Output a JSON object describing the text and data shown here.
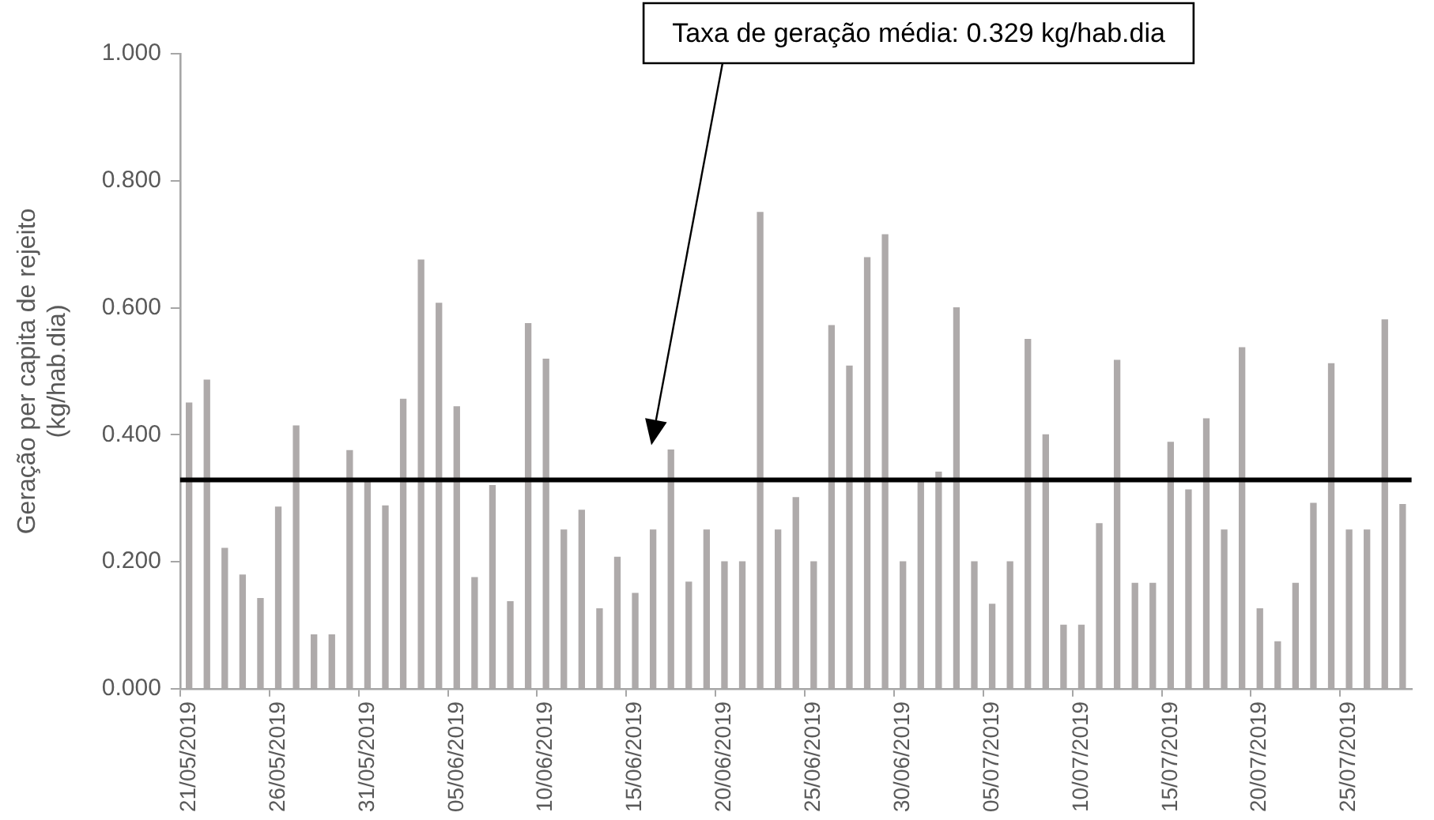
{
  "chart_data": {
    "type": "bar",
    "ylabel": "Geração per capita de rejeito\n(kg/hab.dia)",
    "categories": [
      "21/05/2019",
      null,
      null,
      null,
      null,
      "26/05/2019",
      null,
      null,
      null,
      null,
      "31/05/2019",
      null,
      null,
      null,
      null,
      "05/06/2019",
      null,
      null,
      null,
      null,
      "10/06/2019",
      null,
      null,
      null,
      null,
      "15/06/2019",
      null,
      null,
      null,
      null,
      "20/06/2019",
      null,
      null,
      null,
      null,
      "25/06/2019",
      null,
      null,
      null,
      null,
      "30/06/2019",
      null,
      null,
      null,
      null,
      "05/07/2019",
      null,
      null,
      null,
      null,
      "10/07/2019",
      null,
      null,
      null,
      null,
      "15/07/2019",
      null,
      null,
      null,
      null,
      "20/07/2019",
      null,
      null,
      null,
      null,
      "25/07/2019",
      null,
      null,
      null
    ],
    "values": [
      0.45,
      0.486,
      0.221,
      0.179,
      0.142,
      0.286,
      0.414,
      0.085,
      0.085,
      0.375,
      0.327,
      0.288,
      0.456,
      0.675,
      0.607,
      0.444,
      0.175,
      0.32,
      0.137,
      0.575,
      0.519,
      0.25,
      0.281,
      0.126,
      0.207,
      0.15,
      0.25,
      0.376,
      0.168,
      0.25,
      0.2,
      0.2,
      0.75,
      0.25,
      0.301,
      0.2,
      0.572,
      0.508,
      0.679,
      0.715,
      0.2,
      0.327,
      0.341,
      0.6,
      0.2,
      0.133,
      0.2,
      0.55,
      0.4,
      0.1,
      0.1,
      0.26,
      0.517,
      0.166,
      0.166,
      0.388,
      0.313,
      0.425,
      0.25,
      0.537,
      0.126,
      0.074,
      0.166,
      0.292,
      0.512,
      0.25,
      0.25,
      0.581,
      0.29
    ],
    "color": "#aeaaaa",
    "ylim": [
      0,
      1
    ],
    "yticks": [
      {
        "value": 0,
        "label": "0.000"
      },
      {
        "value": 0.2,
        "label": "0.200"
      },
      {
        "value": 0.4,
        "label": "0.400"
      },
      {
        "value": 0.6,
        "label": "0.600"
      },
      {
        "value": 0.8,
        "label": "0.800"
      },
      {
        "value": 1,
        "label": "1.000"
      }
    ],
    "grid": false,
    "legend": false,
    "ref_lines": [
      {
        "axis": "y",
        "value": 0.329,
        "label": "Taxa de geração média: 0.329 kg/hab.dia",
        "color": "#000000"
      }
    ]
  }
}
